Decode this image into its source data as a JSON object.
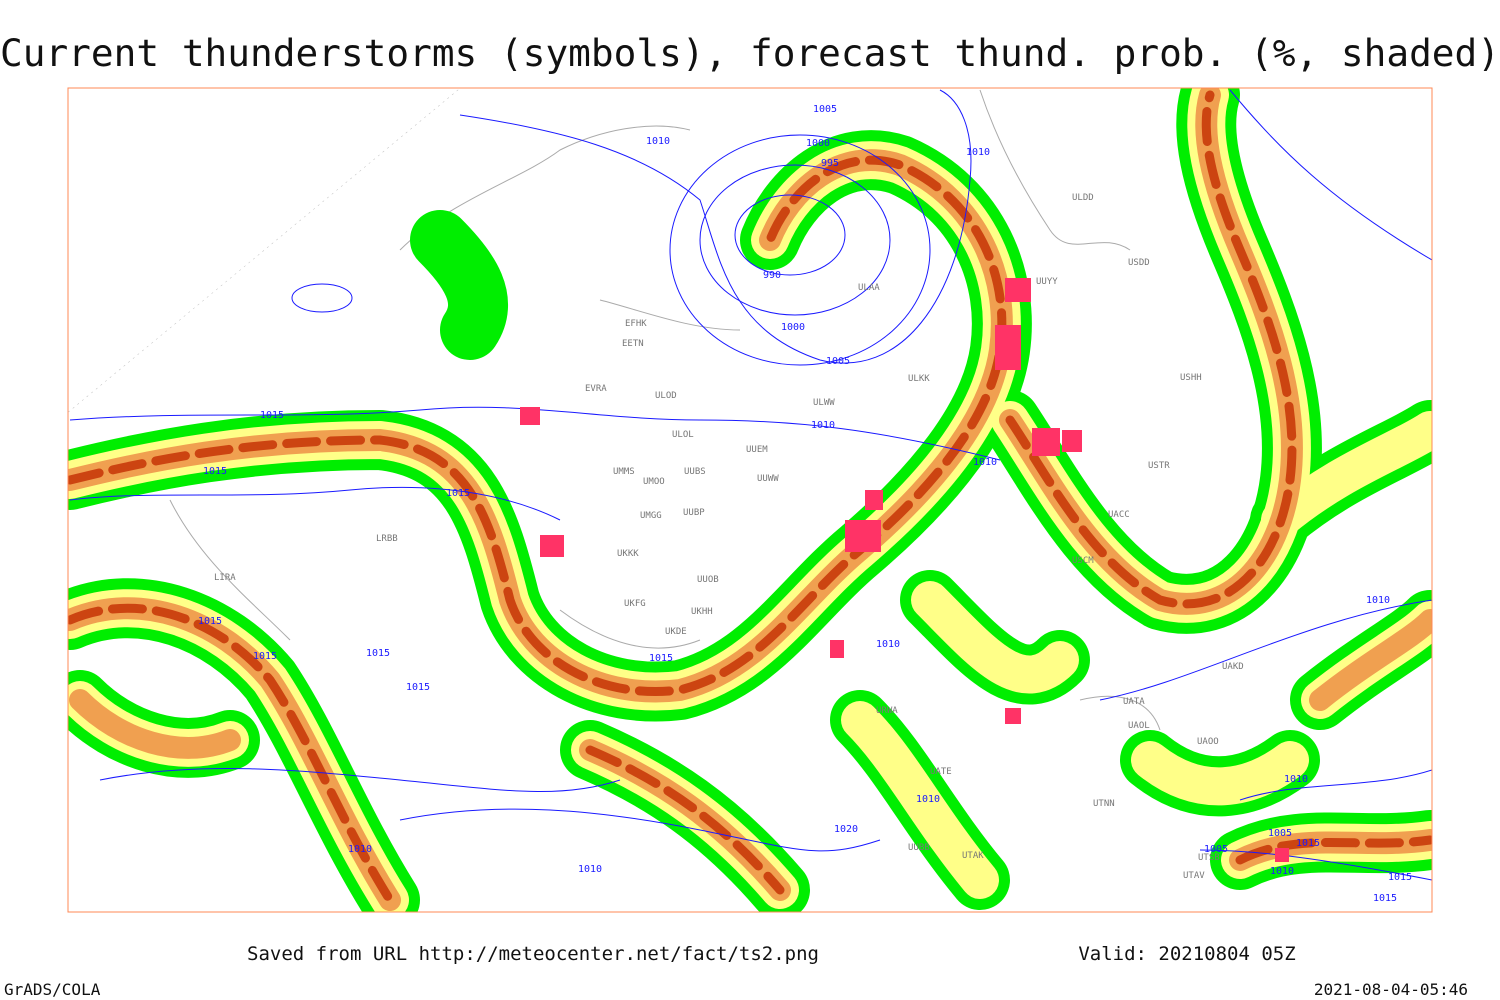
{
  "title": "Current thunderstorms (symbols), forecast thund. prob. (%, shaded)",
  "footer": {
    "source": "Saved from URL http://meteocenter.net/fact/ts2.png",
    "valid": "Valid: 20210804 05Z",
    "software": "GrADS/COLA",
    "timestamp": "2021-08-04-05:46"
  },
  "isobar_labels": [
    "1005",
    "1010",
    "1000",
    "995",
    "990",
    "1000",
    "1005",
    "1010",
    "1010",
    "1015",
    "1015",
    "1015",
    "1015",
    "1015",
    "1015",
    "1015",
    "1015",
    "1010",
    "1010",
    "1010",
    "1020",
    "1010",
    "1010",
    "1010",
    "1005",
    "1005",
    "1015",
    "1010",
    "1015",
    "1015",
    "1010"
  ],
  "station_labels": [
    "ULDD",
    "USDD",
    "ULAA",
    "UUYY",
    "ULKK",
    "ULWW",
    "UUEM",
    "UUWW",
    "UUBS",
    "UMMS",
    "UMOO",
    "UMGG",
    "UUBP",
    "UKKK",
    "UUOB",
    "UKHH",
    "UKDE",
    "UKFG",
    "ULOL",
    "ULOD",
    "EVRA",
    "EETN",
    "EFHK",
    "USHH",
    "USTR",
    "UACC",
    "UATA",
    "UAKD",
    "UAOL",
    "UAOO",
    "UTNN",
    "UTSB",
    "UTAV",
    "LIRA",
    "LRBB",
    "URWA",
    "UATE",
    "UTAK",
    "USCM",
    "UUBB"
  ]
}
